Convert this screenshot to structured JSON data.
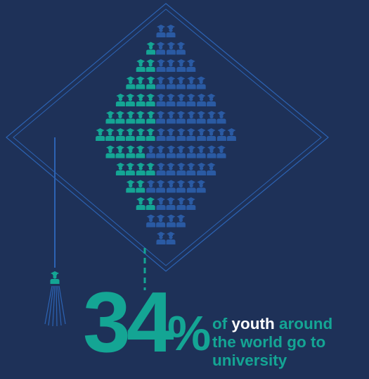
{
  "headline": {
    "number": "34",
    "percent_sign": "%",
    "line1_prefix": "of ",
    "line1_highlight": "youth",
    "line1_suffix": " around",
    "line2": "the world go to",
    "line3": "university"
  },
  "stat": {
    "share_going_to_university": 0.34
  },
  "colors": {
    "background": "#1e3158",
    "highlight": "#14a594",
    "muted_icon": "#2a5aa3",
    "outline": "#2c63b3",
    "emphasis_text": "#ffffff"
  },
  "icons": {
    "person": "graduate-icon"
  }
}
